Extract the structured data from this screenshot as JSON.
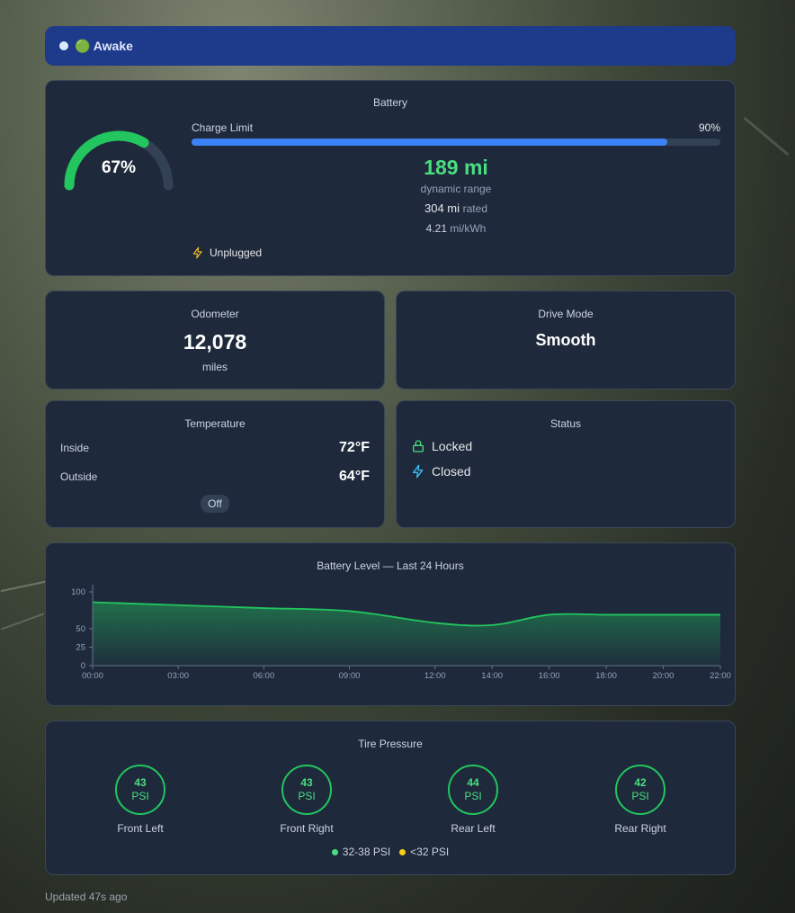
{
  "status": {
    "label": "🟢 Awake"
  },
  "battery": {
    "title": "Battery",
    "percent_label": "67%",
    "percent_value": 67,
    "charge_limit_label": "Charge Limit",
    "charge_limit_value": "90%",
    "charge_limit_fraction": 0.9,
    "dynamic_range": "189 mi",
    "dynamic_range_label": "dynamic range",
    "rated_value": "304 mi",
    "rated_label": "rated",
    "efficiency_value": "4.21",
    "efficiency_unit": "mi/kWh",
    "plug_status": "Unplugged",
    "colors": {
      "gauge": "#22c55e",
      "bar": "#3b82f6",
      "range": "#4ade80"
    }
  },
  "odometer": {
    "title": "Odometer",
    "value": "12,078",
    "unit": "miles"
  },
  "drive_mode": {
    "title": "Drive Mode",
    "value": "Smooth"
  },
  "temperature": {
    "title": "Temperature",
    "inside_label": "Inside",
    "inside_value": "72°F",
    "outside_label": "Outside",
    "outside_value": "64°F",
    "climate": "Off"
  },
  "vehicle_status": {
    "title": "Status",
    "lock": "Locked",
    "lock_icon": "lock-icon",
    "charge_port": "Closed",
    "charge_port_icon": "bolt-icon"
  },
  "chart_data": {
    "type": "area",
    "title": "Battery Level — Last 24 Hours",
    "x": [
      "00:00",
      "03:00",
      "06:00",
      "09:00",
      "12:00",
      "14:00",
      "16:00",
      "18:00",
      "20:00",
      "22:00"
    ],
    "x_hours": [
      0,
      3,
      6,
      9,
      12,
      14,
      16,
      18,
      20,
      22
    ],
    "series": [
      {
        "values": [
          86,
          82,
          78,
          74,
          58,
          55,
          69,
          69,
          69,
          69
        ]
      }
    ],
    "yticks": [
      0,
      25,
      50,
      100
    ],
    "ylim": [
      0,
      100
    ],
    "xlim": [
      0,
      22
    ],
    "grid": false,
    "color": "#22c55e"
  },
  "tires": {
    "title": "Tire Pressure",
    "unit": "PSI",
    "items": [
      {
        "label": "Front Left",
        "value": "43"
      },
      {
        "label": "Front Right",
        "value": "43"
      },
      {
        "label": "Rear Left",
        "value": "44"
      },
      {
        "label": "Rear Right",
        "value": "42"
      }
    ],
    "legend_ok": "32-38 PSI",
    "legend_low": "<32 PSI",
    "colors": {
      "ok": "#4ade80",
      "low": "#facc15"
    }
  },
  "footer": {
    "updated": "Updated 47s ago"
  }
}
